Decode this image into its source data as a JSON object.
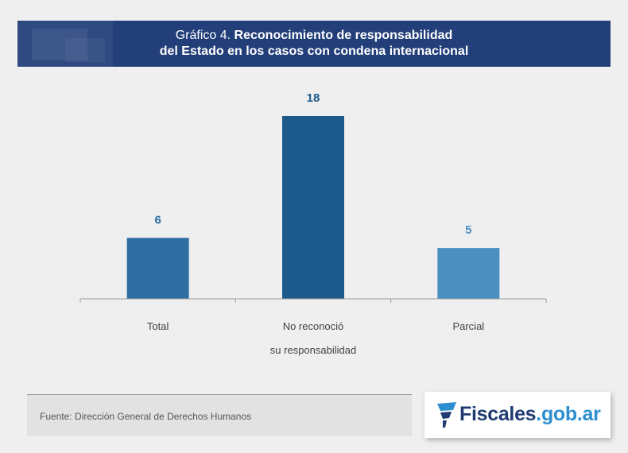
{
  "header": {
    "prefix": "Gráfico 4.",
    "title_line1": "Reconocimiento de responsabilidad",
    "title_line2": "del Estado en los casos con condena internacional"
  },
  "chart_data": {
    "type": "bar",
    "categories": [
      "Total",
      "No reconoció",
      "Parcial"
    ],
    "category_sublabel": "su responsabilidad",
    "values": [
      6,
      18,
      5
    ],
    "ylim": [
      0,
      18
    ],
    "grid": false,
    "colors": [
      "#2f6ea3",
      "#1b5a8b",
      "#4a8fc0"
    ],
    "label_colors": [
      "#2f6ea3",
      "#1b5a8b",
      "#4a8fc0"
    ]
  },
  "footer": {
    "source": "Fuente: Dirección General de Derechos Humanos",
    "logo_name": "Fiscales",
    "logo_domain": ".gob.ar",
    "logo_icon": "flag-icon"
  }
}
